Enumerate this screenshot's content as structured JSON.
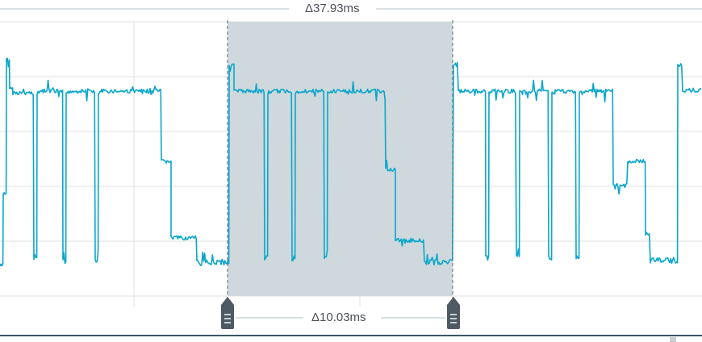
{
  "measurement": {
    "top_delta": "Δ37.93ms",
    "bottom_delta": "Δ10.03ms"
  },
  "colors": {
    "trace": "#0aa6cc",
    "selection": "#cfd8dc",
    "grid": "#e0e0e0",
    "cursor": "#5b6770",
    "handle": "#4e5a63"
  },
  "icons": {
    "left_handle": "cursor-handle-icon",
    "right_handle": "cursor-handle-icon"
  }
}
